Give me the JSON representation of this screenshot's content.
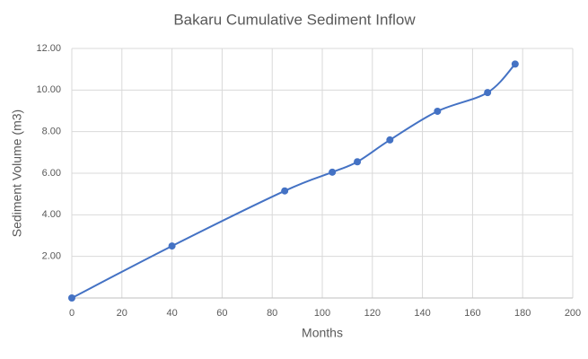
{
  "chart_data": {
    "type": "line",
    "title": "Bakaru Cumulative Sediment Inflow",
    "x_label": "Months",
    "y_label": "Sediment Volume (m3)",
    "x": [
      0,
      40,
      85,
      104,
      114,
      127,
      146,
      166,
      177
    ],
    "series": [
      {
        "name": "Sediment Volume",
        "color": "#4472c4",
        "values": [
          0,
          2.5,
          5.15,
          6.05,
          6.55,
          7.6,
          8.98,
          9.88,
          11.25
        ]
      }
    ],
    "xlim": [
      0,
      200
    ],
    "xticks": [
      0,
      20,
      40,
      60,
      80,
      100,
      120,
      140,
      160,
      180,
      200
    ],
    "ylim": [
      0,
      12
    ],
    "yticks": [
      {
        "value": 2,
        "label": "2.00"
      },
      {
        "value": 4,
        "label": "4.00"
      },
      {
        "value": 6,
        "label": "6.00"
      },
      {
        "value": 8,
        "label": "8.00"
      },
      {
        "value": 10,
        "label": "10.00"
      },
      {
        "value": 12,
        "label": "12.00"
      }
    ],
    "grid": true,
    "smooth": true
  }
}
